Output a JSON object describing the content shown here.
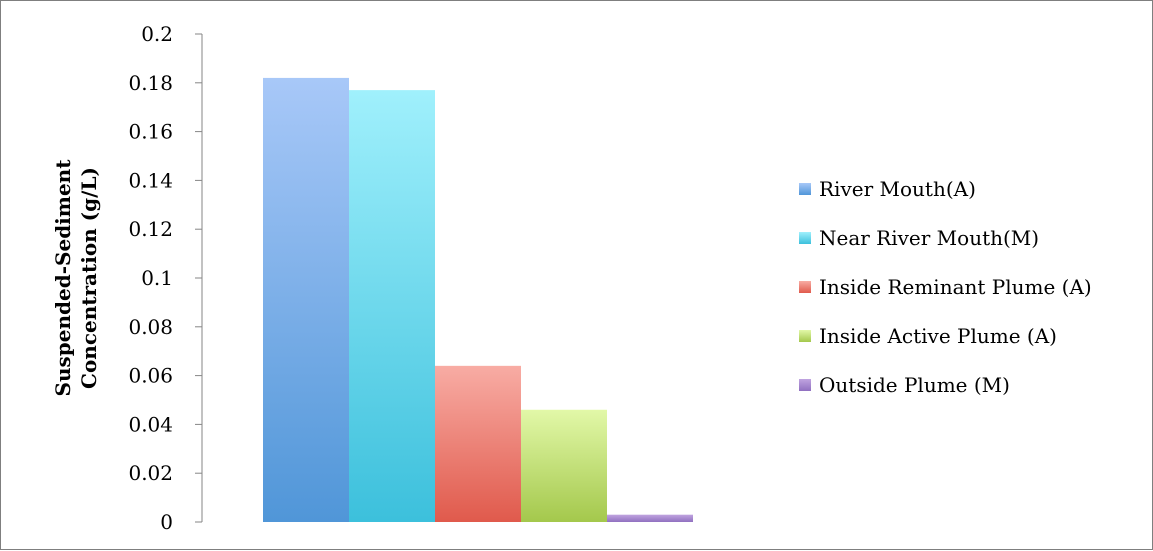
{
  "chart_data": {
    "type": "bar",
    "title": "",
    "xlabel": "",
    "ylabel_lines": [
      "Suspended-Sediment",
      "Concentration (g/L)"
    ],
    "ylim": [
      0,
      0.2
    ],
    "yticks": [
      "0",
      "0.02",
      "0.04",
      "0.06",
      "0.08",
      "0.1",
      "0.12",
      "0.14",
      "0.16",
      "0.18",
      "0.2"
    ],
    "grid": false,
    "legend_position": "right",
    "series": [
      {
        "name": "River Mouth(A)",
        "value": 0.182,
        "color_top": "#a8c8f8",
        "color_bottom": "#5096d8"
      },
      {
        "name": "Near River Mouth(M)",
        "value": 0.177,
        "color_top": "#a0f0fc",
        "color_bottom": "#3cc0dc"
      },
      {
        "name": "Inside Reminant Plume (A)",
        "value": 0.064,
        "color_top": "#f8aca4",
        "color_bottom": "#e05a4c"
      },
      {
        "name": "Inside Active Plume (A)",
        "value": 0.046,
        "color_top": "#e2f8a8",
        "color_bottom": "#a4c84c"
      },
      {
        "name": "Outside Plume (M)",
        "value": 0.003,
        "color_top": "#c0a4e0",
        "color_bottom": "#9070c0"
      }
    ]
  }
}
